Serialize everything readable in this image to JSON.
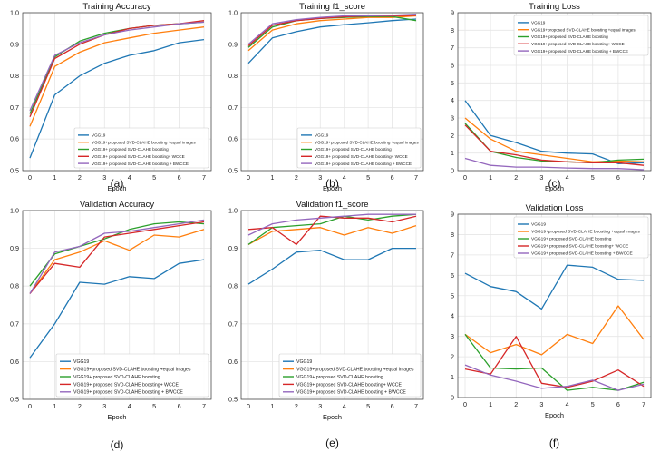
{
  "colors": {
    "series": [
      "#1f77b4",
      "#ff7f0e",
      "#2ca02c",
      "#d62728",
      "#9467bd"
    ],
    "axis": "#333333",
    "grid": "#e6e6e6"
  },
  "chart_data": [
    {
      "type": "line",
      "panel_label": "(a)",
      "title": "Training Accuracy",
      "xlabel": "Epoch",
      "ylabel": "",
      "x": [
        0,
        1,
        2,
        3,
        4,
        5,
        6,
        7
      ],
      "xticks": [
        "0",
        "1",
        "2",
        "3",
        "4",
        "5",
        "6",
        "7"
      ],
      "ylim": [
        0.5,
        1.0
      ],
      "yticks": [
        "0.5",
        "0.6",
        "0.7",
        "0.8",
        "0.9",
        "1.0"
      ],
      "grid": true,
      "legend_position": "lower-right",
      "series": [
        {
          "name": "VGG19",
          "values": [
            0.54,
            0.74,
            0.8,
            0.84,
            0.865,
            0.88,
            0.905,
            0.915
          ]
        },
        {
          "name": "VGG19+proposed SVD-CLAHE boosting +equal images",
          "values": [
            0.64,
            0.83,
            0.875,
            0.905,
            0.92,
            0.935,
            0.945,
            0.955
          ]
        },
        {
          "name": "VGG19+ proposed SVD-CLAHE boosting",
          "values": [
            0.68,
            0.86,
            0.91,
            0.935,
            0.95,
            0.96,
            0.965,
            0.97
          ]
        },
        {
          "name": "VGG19+ proposed SVD-CLAHE boosting+ WCCE",
          "values": [
            0.67,
            0.855,
            0.9,
            0.93,
            0.95,
            0.96,
            0.965,
            0.975
          ]
        },
        {
          "name": "VGG19+ proposed SVD-CLAHE boosting + BWCCE",
          "values": [
            0.69,
            0.865,
            0.905,
            0.93,
            0.945,
            0.955,
            0.965,
            0.97
          ]
        }
      ]
    },
    {
      "type": "line",
      "panel_label": "(b)",
      "title": "Training f1_score",
      "xlabel": "Epoch",
      "ylabel": "",
      "x": [
        0,
        1,
        2,
        3,
        4,
        5,
        6,
        7
      ],
      "xticks": [
        "0",
        "1",
        "2",
        "3",
        "4",
        "5",
        "6",
        "7"
      ],
      "ylim": [
        0.5,
        1.0
      ],
      "yticks": [
        "0.5",
        "0.6",
        "0.7",
        "0.8",
        "0.9",
        "1.0"
      ],
      "grid": true,
      "legend_position": "lower-right",
      "series": [
        {
          "name": "VGG19",
          "values": [
            0.84,
            0.92,
            0.94,
            0.955,
            0.962,
            0.968,
            0.975,
            0.98
          ]
        },
        {
          "name": "VGG19+proposed SVD-CLAHE boosting +equal images",
          "values": [
            0.88,
            0.945,
            0.965,
            0.975,
            0.98,
            0.985,
            0.985,
            0.99
          ]
        },
        {
          "name": "VGG19+ proposed SVD-CLAHE boosting",
          "values": [
            0.89,
            0.955,
            0.975,
            0.982,
            0.985,
            0.988,
            0.988,
            0.975
          ]
        },
        {
          "name": "VGG19+ proposed SVD-CLAHE boosting+ WCCE",
          "values": [
            0.895,
            0.96,
            0.975,
            0.982,
            0.987,
            0.99,
            0.99,
            0.992
          ]
        },
        {
          "name": "VGG19+ proposed SVD-CLAHE boosting + BWCCE",
          "values": [
            0.9,
            0.965,
            0.978,
            0.985,
            0.99,
            0.99,
            0.992,
            0.995
          ]
        }
      ]
    },
    {
      "type": "line",
      "panel_label": "(c)",
      "title": "Training Loss",
      "xlabel": "Epoch",
      "ylabel": "",
      "x": [
        0,
        1,
        2,
        3,
        4,
        5,
        6,
        7
      ],
      "xticks": [
        "0",
        "1",
        "2",
        "3",
        "4",
        "5",
        "6",
        "7"
      ],
      "ylim": [
        0,
        9
      ],
      "yticks": [
        "0",
        "1",
        "2",
        "3",
        "4",
        "5",
        "6",
        "7",
        "8",
        "9"
      ],
      "grid": true,
      "legend_position": "upper-right",
      "series": [
        {
          "name": "VGG19",
          "values": [
            4.0,
            2.0,
            1.6,
            1.1,
            1.0,
            0.95,
            0.4,
            0.45
          ]
        },
        {
          "name": "VGG19+proposed SVD-CLAHE boosting +equal images",
          "values": [
            3.0,
            1.8,
            1.1,
            0.9,
            0.7,
            0.5,
            0.55,
            0.5
          ]
        },
        {
          "name": "VGG19+ proposed SVD-CLAHE boosting",
          "values": [
            2.7,
            1.1,
            0.75,
            0.55,
            0.5,
            0.45,
            0.6,
            0.65
          ]
        },
        {
          "name": "VGG19+ proposed SVD-CLAHE boosting+ WCCE",
          "values": [
            2.6,
            1.1,
            0.9,
            0.6,
            0.5,
            0.45,
            0.45,
            0.3
          ]
        },
        {
          "name": "VGG19+ proposed SVD-CLAHE boosting + BWCCE",
          "values": [
            0.7,
            0.3,
            0.2,
            0.2,
            0.15,
            0.12,
            0.12,
            0.05
          ]
        }
      ]
    },
    {
      "type": "line",
      "panel_label": "(d)",
      "title": "Validation Accuracy",
      "xlabel": "Epoch",
      "ylabel": "",
      "x": [
        0,
        1,
        2,
        3,
        4,
        5,
        6,
        7
      ],
      "xticks": [
        "0",
        "1",
        "2",
        "3",
        "4",
        "5",
        "6",
        "7"
      ],
      "ylim": [
        0.5,
        1.0
      ],
      "yticks": [
        "0.5",
        "0.6",
        "0.7",
        "0.8",
        "0.9",
        "1.0"
      ],
      "grid": true,
      "legend_position": "lower-right",
      "series": [
        {
          "name": "VGG19",
          "values": [
            0.61,
            0.7,
            0.81,
            0.805,
            0.825,
            0.82,
            0.86,
            0.87
          ]
        },
        {
          "name": "VGG19+proposed SVD-CLAHE boosting +equal images",
          "values": [
            0.78,
            0.87,
            0.89,
            0.92,
            0.895,
            0.935,
            0.93,
            0.95
          ]
        },
        {
          "name": "VGG19+ proposed SVD-CLAHE boosting",
          "values": [
            0.8,
            0.885,
            0.905,
            0.925,
            0.95,
            0.965,
            0.97,
            0.965
          ]
        },
        {
          "name": "VGG19+ proposed SVD-CLAHE boosting+ WCCE",
          "values": [
            0.78,
            0.86,
            0.85,
            0.93,
            0.94,
            0.95,
            0.96,
            0.97
          ]
        },
        {
          "name": "VGG19+ proposed SVD-CLAHE boosting + BWCCE",
          "values": [
            0.78,
            0.89,
            0.905,
            0.94,
            0.945,
            0.955,
            0.965,
            0.975
          ]
        }
      ]
    },
    {
      "type": "line",
      "panel_label": "(e)",
      "title": "Validation f1_score",
      "xlabel": "Epoch",
      "ylabel": "",
      "x": [
        0,
        1,
        2,
        3,
        4,
        5,
        6,
        7
      ],
      "xticks": [
        "0",
        "1",
        "2",
        "3",
        "4",
        "5",
        "6",
        "7"
      ],
      "ylim": [
        0.5,
        1.0
      ],
      "yticks": [
        "0.5",
        "0.6",
        "0.7",
        "0.8",
        "0.9",
        "1.0"
      ],
      "grid": true,
      "legend_position": "lower-right",
      "series": [
        {
          "name": "VGG19",
          "values": [
            0.805,
            0.845,
            0.89,
            0.895,
            0.87,
            0.87,
            0.9,
            0.9
          ]
        },
        {
          "name": "VGG19+proposed SVD-CLAHE boosting +equal images",
          "values": [
            0.91,
            0.945,
            0.95,
            0.955,
            0.935,
            0.955,
            0.94,
            0.96
          ]
        },
        {
          "name": "VGG19+ proposed SVD-CLAHE boosting",
          "values": [
            0.91,
            0.955,
            0.96,
            0.965,
            0.985,
            0.975,
            0.985,
            0.99
          ]
        },
        {
          "name": "VGG19+ proposed SVD-CLAHE boosting+ WCCE",
          "values": [
            0.95,
            0.955,
            0.91,
            0.985,
            0.98,
            0.98,
            0.97,
            0.985
          ]
        },
        {
          "name": "VGG19+ proposed SVD-CLAHE boosting + BWCCE",
          "values": [
            0.935,
            0.965,
            0.975,
            0.98,
            0.985,
            0.99,
            0.99,
            0.99
          ]
        }
      ]
    },
    {
      "type": "line",
      "panel_label": "(f)",
      "title": "Validation Loss",
      "xlabel": "Epoch",
      "ylabel": "",
      "x": [
        0,
        1,
        2,
        3,
        4,
        5,
        6,
        7
      ],
      "xticks": [
        "0",
        "1",
        "2",
        "3",
        "4",
        "5",
        "6",
        "7"
      ],
      "ylim": [
        0,
        9
      ],
      "yticks": [
        "0",
        "1",
        "2",
        "3",
        "4",
        "5",
        "6",
        "7",
        "8",
        "9"
      ],
      "grid": true,
      "legend_position": "upper-right",
      "series": [
        {
          "name": "VGG19",
          "values": [
            6.1,
            5.45,
            5.2,
            4.35,
            6.5,
            6.4,
            5.8,
            5.75
          ]
        },
        {
          "name": "VGG19+proposed SVD-CLAHE boosting +equal images",
          "values": [
            3.1,
            2.2,
            2.6,
            2.1,
            3.1,
            2.65,
            4.5,
            2.85
          ]
        },
        {
          "name": "VGG19+ proposed SVD-CLAHE boosting",
          "values": [
            3.1,
            1.45,
            1.4,
            1.45,
            0.35,
            0.5,
            0.35,
            0.75
          ]
        },
        {
          "name": "VGG19+ proposed SVD-CLAHE boosting+ WCCE",
          "values": [
            1.4,
            1.15,
            3.0,
            0.7,
            0.5,
            0.8,
            1.35,
            0.55
          ]
        },
        {
          "name": "VGG19+ proposed SVD-CLAHE boosting + BWCCE",
          "values": [
            1.6,
            1.1,
            0.8,
            0.45,
            0.55,
            0.85,
            0.35,
            0.65
          ]
        }
      ]
    }
  ]
}
